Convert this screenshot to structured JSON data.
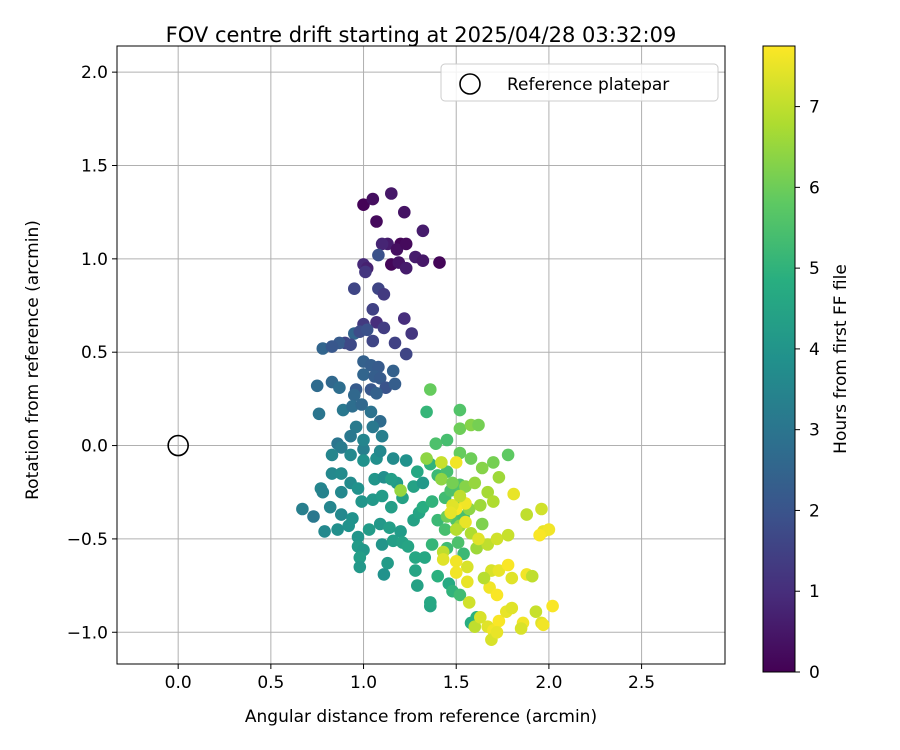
{
  "chart_data": {
    "type": "scatter",
    "title": "FOV centre drift starting at 2025/04/28 03:32:09",
    "xlabel": "Angular distance from reference (arcmin)",
    "ylabel": "Rotation from reference (arcmin)",
    "xlim": [
      -0.33,
      2.95
    ],
    "ylim": [
      -1.17,
      2.14
    ],
    "xticks": [
      0.0,
      0.5,
      1.0,
      1.5,
      2.0,
      2.5
    ],
    "xtick_labels": [
      "0.0",
      "0.5",
      "1.0",
      "1.5",
      "2.0",
      "2.5"
    ],
    "yticks": [
      -1.0,
      -0.5,
      0.0,
      0.5,
      1.0,
      1.5,
      2.0
    ],
    "ytick_labels": [
      "−1.0",
      "−0.5",
      "0.0",
      "0.5",
      "1.0",
      "1.5",
      "2.0"
    ],
    "grid": true,
    "legend": {
      "placement": "top-right",
      "label": "Reference platepar"
    },
    "reference_point": {
      "x": 0.0,
      "y": 0.0
    },
    "colorbar": {
      "label": "Hours from first FF file",
      "colormap": "viridis",
      "range": [
        0,
        7.75
      ],
      "ticks": [
        0,
        1,
        2,
        3,
        4,
        5,
        6,
        7
      ],
      "tick_labels": [
        "0",
        "1",
        "2",
        "3",
        "4",
        "5",
        "6",
        "7"
      ]
    },
    "points": [
      [
        1.0,
        1.29,
        0.05
      ],
      [
        1.05,
        1.32,
        0.3
      ],
      [
        1.15,
        1.35,
        0.5
      ],
      [
        1.07,
        1.2,
        0.2
      ],
      [
        1.22,
        1.25,
        0.4
      ],
      [
        1.13,
        1.08,
        0.6
      ],
      [
        1.2,
        1.08,
        0.1
      ],
      [
        1.18,
        1.05,
        0.3
      ],
      [
        1.1,
        1.08,
        0.8
      ],
      [
        1.23,
        1.08,
        0.2
      ],
      [
        1.32,
        1.15,
        0.6
      ],
      [
        1.0,
        0.97,
        0.9
      ],
      [
        1.02,
        0.95,
        0.7
      ],
      [
        1.15,
        0.97,
        0.1
      ],
      [
        1.19,
        0.98,
        0.4
      ],
      [
        1.28,
        1.01,
        0.6
      ],
      [
        1.32,
        0.99,
        0.5
      ],
      [
        1.41,
        0.98,
        0.1
      ],
      [
        1.23,
        0.95,
        0.6
      ],
      [
        1.08,
        1.02,
        1.9
      ],
      [
        1.01,
        0.93,
        1.2
      ],
      [
        0.95,
        0.84,
        1.6
      ],
      [
        1.08,
        0.84,
        1.6
      ],
      [
        1.11,
        0.81,
        1.3
      ],
      [
        1.05,
        0.73,
        1.5
      ],
      [
        1.22,
        0.68,
        1.0
      ],
      [
        1.26,
        0.6,
        1.2
      ],
      [
        1.0,
        0.65,
        1.3
      ],
      [
        1.07,
        0.66,
        1.0
      ],
      [
        1.11,
        0.63,
        1.4
      ],
      [
        0.95,
        0.6,
        2.5
      ],
      [
        0.98,
        0.61,
        1.8
      ],
      [
        1.02,
        0.62,
        1.9
      ],
      [
        0.9,
        0.55,
        1.6
      ],
      [
        0.87,
        0.55,
        2.2
      ],
      [
        0.78,
        0.52,
        2.5
      ],
      [
        0.83,
        0.53,
        2.1
      ],
      [
        0.93,
        0.54,
        1.7
      ],
      [
        1.05,
        0.56,
        1.6
      ],
      [
        1.17,
        0.55,
        1.5
      ],
      [
        1.23,
        0.49,
        1.6
      ],
      [
        1.0,
        0.45,
        2.4
      ],
      [
        1.04,
        0.43,
        2.3
      ],
      [
        1.08,
        0.42,
        2.2
      ],
      [
        1.0,
        0.38,
        2.5
      ],
      [
        1.06,
        0.37,
        2.3
      ],
      [
        1.09,
        0.36,
        2.2
      ],
      [
        1.16,
        0.4,
        2.4
      ],
      [
        0.75,
        0.32,
        2.7
      ],
      [
        0.83,
        0.34,
        2.6
      ],
      [
        0.87,
        0.31,
        2.8
      ],
      [
        0.96,
        0.3,
        2.2
      ],
      [
        1.04,
        0.3,
        2.1
      ],
      [
        1.12,
        0.31,
        2.0
      ],
      [
        1.17,
        0.33,
        2.3
      ],
      [
        0.95,
        0.27,
        2.6
      ],
      [
        1.07,
        0.28,
        2.4
      ],
      [
        0.76,
        0.17,
        3.0
      ],
      [
        0.89,
        0.19,
        3.1
      ],
      [
        0.94,
        0.21,
        2.8
      ],
      [
        0.99,
        0.22,
        2.6
      ],
      [
        1.04,
        0.18,
        2.9
      ],
      [
        1.09,
        0.13,
        2.7
      ],
      [
        0.96,
        0.1,
        3.2
      ],
      [
        0.93,
        0.05,
        3.1
      ],
      [
        1.05,
        0.1,
        3.1
      ],
      [
        1.1,
        0.05,
        3.3
      ],
      [
        0.86,
        0.01,
        3.0
      ],
      [
        0.88,
        -0.01,
        3.2
      ],
      [
        1.0,
        -0.02,
        3.3
      ],
      [
        1.0,
        0.03,
        3.5
      ],
      [
        0.83,
        -0.05,
        3.5
      ],
      [
        0.93,
        -0.05,
        3.6
      ],
      [
        1.0,
        -0.08,
        3.9
      ],
      [
        1.07,
        -0.07,
        3.8
      ],
      [
        1.09,
        -0.03,
        3.6
      ],
      [
        1.16,
        -0.07,
        3.7
      ],
      [
        1.23,
        -0.08,
        3.9
      ],
      [
        0.83,
        -0.15,
        3.6
      ],
      [
        0.88,
        -0.15,
        3.7
      ],
      [
        0.77,
        -0.23,
        3.5
      ],
      [
        0.78,
        -0.25,
        3.4
      ],
      [
        0.88,
        -0.25,
        3.6
      ],
      [
        0.93,
        -0.2,
        3.7
      ],
      [
        0.97,
        -0.23,
        3.9
      ],
      [
        1.06,
        -0.18,
        4.0
      ],
      [
        1.11,
        -0.17,
        3.8
      ],
      [
        1.18,
        -0.2,
        4.2
      ],
      [
        1.27,
        -0.22,
        4.4
      ],
      [
        1.32,
        -0.2,
        4.1
      ],
      [
        0.67,
        -0.34,
        3.3
      ],
      [
        0.73,
        -0.38,
        3.1
      ],
      [
        0.82,
        -0.33,
        3.5
      ],
      [
        0.88,
        -0.37,
        3.6
      ],
      [
        0.94,
        -0.39,
        3.9
      ],
      [
        0.99,
        -0.3,
        4.0
      ],
      [
        1.05,
        -0.29,
        4.1
      ],
      [
        1.1,
        -0.27,
        4.2
      ],
      [
        1.15,
        -0.33,
        4.3
      ],
      [
        1.21,
        -0.28,
        4.4
      ],
      [
        0.79,
        -0.46,
        3.6
      ],
      [
        0.86,
        -0.45,
        3.8
      ],
      [
        0.92,
        -0.43,
        3.9
      ],
      [
        0.97,
        -0.49,
        4.0
      ],
      [
        1.03,
        -0.45,
        4.2
      ],
      [
        1.09,
        -0.42,
        4.1
      ],
      [
        1.14,
        -0.44,
        4.3
      ],
      [
        1.2,
        -0.46,
        4.2
      ],
      [
        1.27,
        -0.4,
        4.4
      ],
      [
        1.3,
        -0.36,
        4.5
      ],
      [
        0.97,
        -0.54,
        4.2
      ],
      [
        1.0,
        -0.56,
        4.1
      ],
      [
        1.1,
        -0.53,
        4.0
      ],
      [
        1.16,
        -0.51,
        4.3
      ],
      [
        1.21,
        -0.52,
        4.4
      ],
      [
        1.24,
        -0.54,
        4.5
      ],
      [
        1.28,
        -0.6,
        4.6
      ],
      [
        0.98,
        -0.6,
        4.3
      ],
      [
        0.98,
        -0.65,
        4.1
      ],
      [
        1.11,
        -0.69,
        3.9
      ],
      [
        1.13,
        -0.63,
        4.2
      ],
      [
        1.28,
        -0.67,
        4.5
      ],
      [
        1.33,
        -0.6,
        4.6
      ],
      [
        1.29,
        -0.75,
        4.4
      ],
      [
        1.36,
        -0.86,
        4.5
      ],
      [
        1.36,
        -0.84,
        4.6
      ],
      [
        1.58,
        -0.95,
        4.8
      ],
      [
        1.61,
        -0.92,
        4.9
      ],
      [
        1.15,
        -0.18,
        4.3
      ],
      [
        1.29,
        -0.14,
        4.6
      ],
      [
        1.36,
        -0.1,
        5.0
      ],
      [
        1.4,
        -0.16,
        5.2
      ],
      [
        1.45,
        -0.14,
        5.4
      ],
      [
        1.32,
        -0.33,
        4.8
      ],
      [
        1.37,
        -0.3,
        5.0
      ],
      [
        1.44,
        -0.28,
        5.3
      ],
      [
        1.47,
        -0.24,
        5.5
      ],
      [
        1.52,
        -0.21,
        5.6
      ],
      [
        1.4,
        -0.4,
        5.2
      ],
      [
        1.44,
        -0.45,
        5.4
      ],
      [
        1.5,
        -0.4,
        5.6
      ],
      [
        1.54,
        -0.38,
        5.4
      ],
      [
        1.37,
        -0.53,
        5.1
      ],
      [
        1.45,
        -0.55,
        5.3
      ],
      [
        1.51,
        -0.52,
        5.5
      ],
      [
        1.54,
        -0.58,
        5.2
      ],
      [
        1.4,
        -0.7,
        4.9
      ],
      [
        1.46,
        -0.74,
        4.7
      ],
      [
        1.48,
        -0.78,
        5.0
      ],
      [
        1.52,
        -0.8,
        5.3
      ],
      [
        1.36,
        0.3,
        5.9
      ],
      [
        1.34,
        0.18,
        5.1
      ],
      [
        1.45,
        0.03,
        5.4
      ],
      [
        1.52,
        0.19,
        5.6
      ],
      [
        1.52,
        0.09,
        6.0
      ],
      [
        1.58,
        0.11,
        6.3
      ],
      [
        1.62,
        0.11,
        6.1
      ],
      [
        1.52,
        -0.04,
        5.9
      ],
      [
        1.58,
        -0.07,
        6.0
      ],
      [
        1.64,
        -0.12,
        6.3
      ],
      [
        1.7,
        -0.09,
        6.1
      ],
      [
        1.78,
        -0.05,
        5.8
      ],
      [
        1.39,
        0.01,
        5.5
      ],
      [
        1.34,
        -0.07,
        6.4
      ],
      [
        1.42,
        -0.18,
        6.4
      ],
      [
        1.48,
        -0.2,
        6.1
      ],
      [
        1.55,
        -0.22,
        6.3
      ],
      [
        1.6,
        -0.2,
        6.5
      ],
      [
        1.67,
        -0.25,
        6.7
      ],
      [
        1.73,
        -0.17,
        6.6
      ],
      [
        1.5,
        -0.32,
        6.2
      ],
      [
        1.57,
        -0.34,
        6.4
      ],
      [
        1.63,
        -0.32,
        6.6
      ],
      [
        1.7,
        -0.3,
        6.8
      ],
      [
        1.45,
        -0.38,
        6.0
      ],
      [
        1.52,
        -0.43,
        6.5
      ],
      [
        1.58,
        -0.47,
        6.8
      ],
      [
        1.64,
        -0.42,
        6.2
      ],
      [
        1.61,
        -0.55,
        6.6
      ],
      [
        1.67,
        -0.53,
        7.0
      ],
      [
        1.72,
        -0.5,
        7.2
      ],
      [
        1.78,
        -0.48,
        7.1
      ],
      [
        1.81,
        -0.26,
        7.5
      ],
      [
        1.88,
        -0.37,
        7.0
      ],
      [
        1.96,
        -0.34,
        7.2
      ],
      [
        1.97,
        -0.46,
        7.5
      ],
      [
        2.0,
        -0.45,
        7.6
      ],
      [
        1.95,
        -0.48,
        7.7
      ],
      [
        1.43,
        -0.57,
        7.0
      ],
      [
        1.43,
        -0.61,
        7.4
      ],
      [
        1.5,
        -0.62,
        7.6
      ],
      [
        1.56,
        -0.65,
        7.3
      ],
      [
        1.5,
        -0.68,
        7.6
      ],
      [
        1.56,
        -0.73,
        7.5
      ],
      [
        1.69,
        -0.67,
        7.3
      ],
      [
        1.73,
        -0.67,
        7.5
      ],
      [
        1.78,
        -0.64,
        7.7
      ],
      [
        1.8,
        -0.71,
        7.4
      ],
      [
        1.88,
        -0.69,
        7.6
      ],
      [
        1.91,
        -0.7,
        7.0
      ],
      [
        1.68,
        -0.76,
        7.6
      ],
      [
        1.72,
        -0.8,
        7.7
      ],
      [
        1.65,
        -0.71,
        6.9
      ],
      [
        1.57,
        -0.84,
        7.2
      ],
      [
        1.6,
        -0.97,
        7.0
      ],
      [
        1.63,
        -0.92,
        7.3
      ],
      [
        1.67,
        -0.97,
        7.4
      ],
      [
        1.7,
        -0.99,
        7.6
      ],
      [
        1.73,
        -0.94,
        7.7
      ],
      [
        1.77,
        -0.89,
        7.5
      ],
      [
        1.8,
        -0.87,
        7.4
      ],
      [
        1.86,
        -0.95,
        7.6
      ],
      [
        1.85,
        -0.98,
        7.3
      ],
      [
        1.93,
        -0.89,
        7.1
      ],
      [
        1.96,
        -0.95,
        7.4
      ],
      [
        1.97,
        -0.96,
        7.6
      ],
      [
        2.02,
        -0.86,
        7.7
      ],
      [
        1.69,
        -1.04,
        7.3
      ],
      [
        1.72,
        -1.0,
        7.5
      ],
      [
        1.55,
        -0.31,
        7.6
      ],
      [
        1.5,
        -0.34,
        7.7
      ],
      [
        1.48,
        -0.32,
        7.4
      ],
      [
        1.55,
        -0.41,
        7.5
      ],
      [
        1.62,
        -0.5,
        7.4
      ],
      [
        1.5,
        -0.45,
        6.9
      ],
      [
        1.42,
        -0.09,
        7.1
      ],
      [
        1.5,
        -0.09,
        7.6
      ],
      [
        1.2,
        -0.24,
        6.5
      ],
      [
        1.47,
        -0.36,
        7.5
      ],
      [
        1.52,
        -0.27,
        7.0
      ]
    ]
  }
}
